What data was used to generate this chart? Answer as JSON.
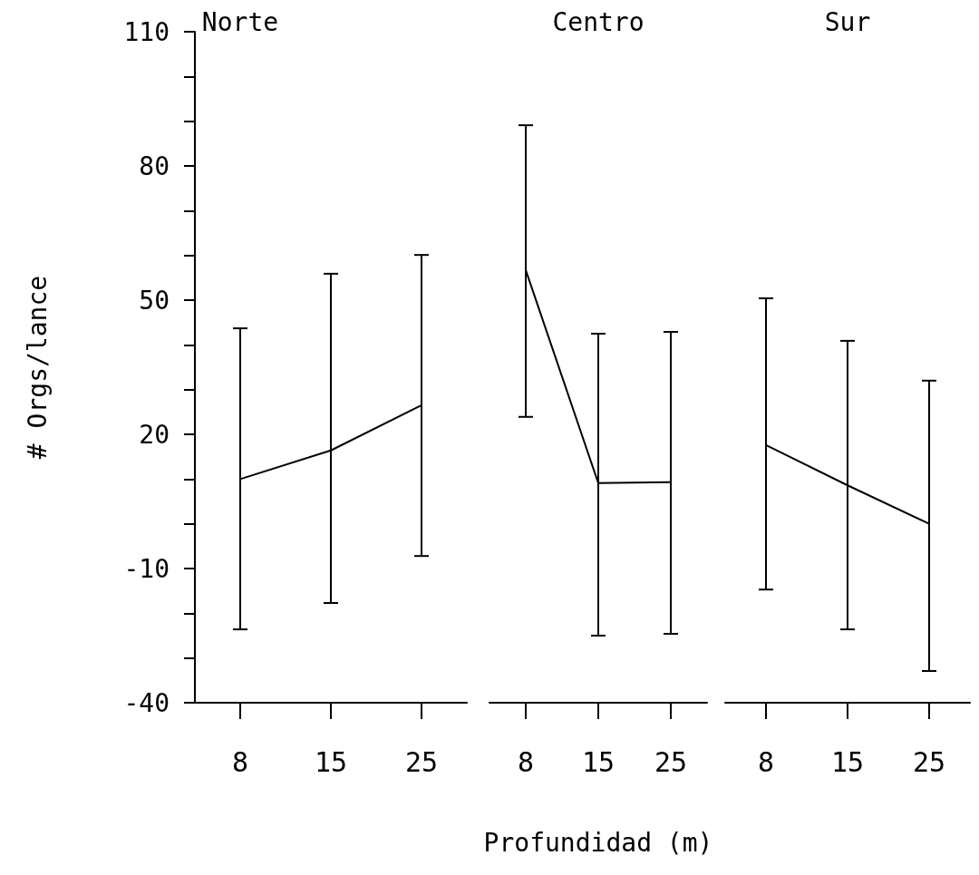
{
  "chart_data": [
    {
      "type": "line",
      "title": "Norte",
      "ylabel": "# Orgs/lance",
      "categories": [
        "8",
        "15",
        "25"
      ],
      "ylim": [
        -40,
        110
      ],
      "yticks": [
        -40,
        {
          "value": -30,
          "label": null
        },
        {
          "value": -20,
          "label": null
        },
        -10,
        {
          "value": 0,
          "label": null
        },
        {
          "value": 10,
          "label": null
        },
        20,
        {
          "value": 30,
          "label": null
        },
        {
          "value": 40,
          "label": null
        },
        50,
        {
          "value": 60,
          "label": null
        },
        {
          "value": 70,
          "label": null
        },
        80,
        {
          "value": 90,
          "label": null
        },
        {
          "value": 100,
          "label": null
        },
        110
      ],
      "marker": "none",
      "grid": false,
      "series": [
        {
          "color": "#000000",
          "values": [
            10,
            16.4,
            26.5
          ],
          "errors": [
            [
              -23.6,
              43.7
            ],
            [
              -17.7,
              55.9
            ],
            [
              -7.2,
              60.1
            ]
          ]
        }
      ]
    },
    {
      "type": "line",
      "title": "Centro",
      "xlabel": "Profundidad (m)",
      "categories": [
        "8",
        "15",
        "25"
      ],
      "ylim": [
        -40,
        110
      ],
      "tick_labels": "x",
      "marker": "none",
      "grid": false,
      "series": [
        {
          "color": "#000000",
          "values": [
            56.7,
            9.1,
            9.3
          ],
          "errors": [
            [
              23.9,
              89.1
            ],
            [
              -25,
              42.5
            ],
            [
              -24.6,
              42.9
            ]
          ]
        }
      ]
    },
    {
      "type": "line",
      "title": "Sur",
      "categories": [
        "8",
        "15",
        "25"
      ],
      "ylim": [
        -40,
        110
      ],
      "tick_labels": "x",
      "marker": "none",
      "grid": false,
      "series": [
        {
          "color": "#000000",
          "values": [
            17.6,
            8.6,
            0
          ],
          "errors": [
            [
              -14.7,
              50.4
            ],
            [
              -23.6,
              40.9
            ],
            [
              -32.9,
              32
            ]
          ]
        }
      ]
    }
  ]
}
